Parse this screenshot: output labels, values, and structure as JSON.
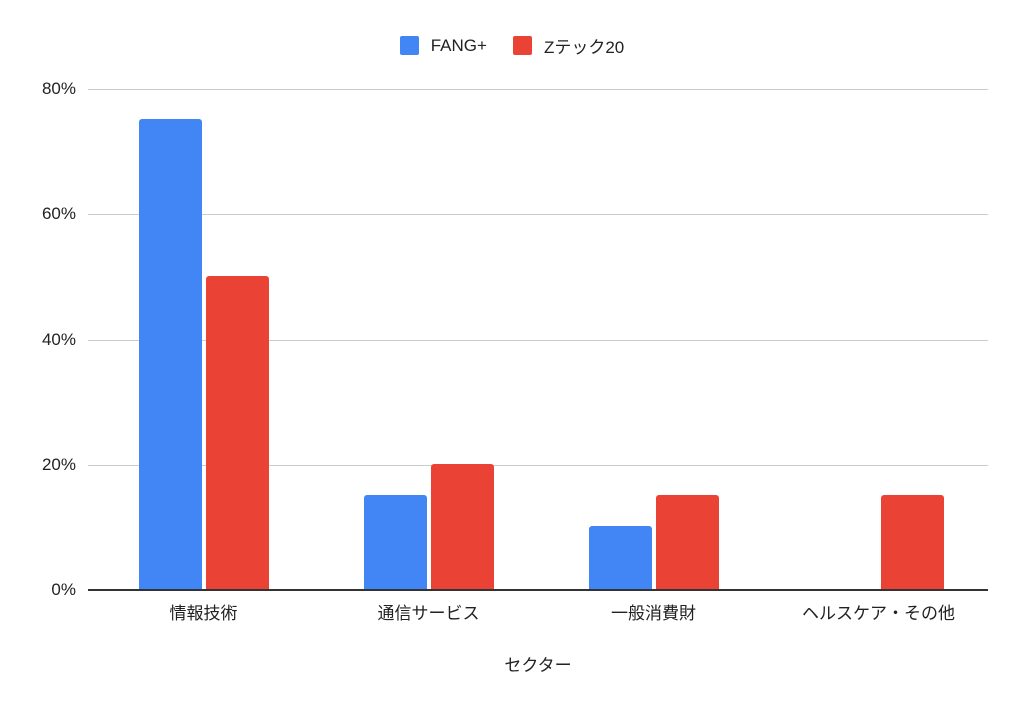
{
  "chart_data": {
    "type": "bar",
    "title": "",
    "xlabel": "セクター",
    "ylabel": "",
    "categories": [
      "情報技術",
      "通信サービス",
      "一般消費財",
      "ヘルスケア・その他"
    ],
    "series": [
      {
        "name": "FANG+",
        "color": "#4285f4",
        "values": [
          75,
          15,
          10,
          0
        ]
      },
      {
        "name": "Zテック20",
        "color": "#ea4335",
        "values": [
          50,
          20,
          15,
          15
        ]
      }
    ],
    "ylim": [
      0,
      80
    ],
    "yticks": [
      "0%",
      "20%",
      "40%",
      "60%",
      "80%"
    ],
    "grid": true,
    "legend_position": "top"
  }
}
